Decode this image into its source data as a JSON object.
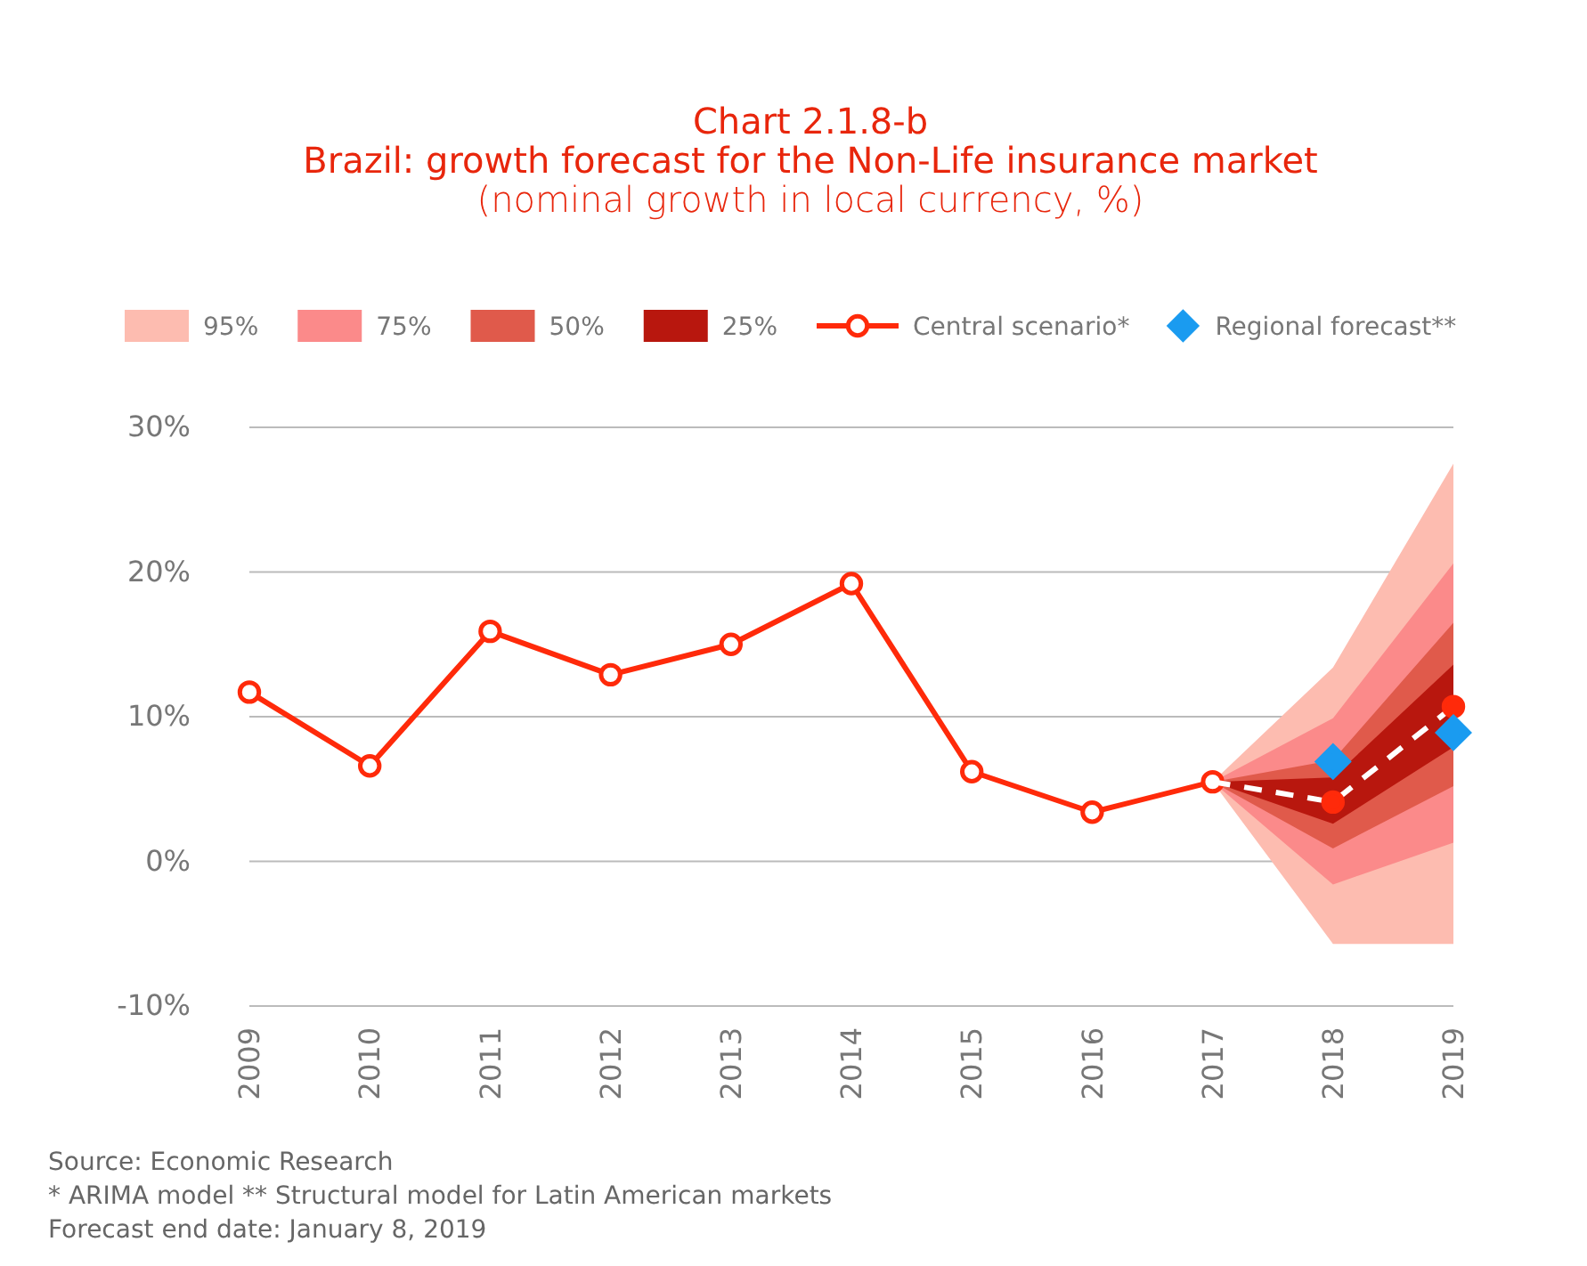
{
  "chart_data": {
    "type": "line",
    "title": "Chart 2.1.8-b\nBrazil: growth forecast for the Non-Life insurance market",
    "subtitle": "(nominal growth in local currency, %)",
    "categories": [
      "2009",
      "2010",
      "2011",
      "2012",
      "2013",
      "2014",
      "2015",
      "2016",
      "2017",
      "2018",
      "2019"
    ],
    "ylim": [
      -10,
      30
    ],
    "yticks": [
      {
        "value": -10,
        "label": "-10%"
      },
      {
        "value": 0,
        "label": "0%"
      },
      {
        "value": 10,
        "label": "10%"
      },
      {
        "value": 20,
        "label": "20%"
      },
      {
        "value": 30,
        "label": "30%"
      }
    ],
    "grid": "y",
    "legend": "top",
    "series": [
      {
        "name": "95%",
        "type": "area",
        "color": "#fdbcb0",
        "values": [
          null,
          null,
          null,
          null,
          null,
          null,
          null,
          null,
          null,
          null,
          null
        ],
        "lower": [
          null,
          null,
          null,
          null,
          null,
          null,
          null,
          null,
          5.5,
          -5.7,
          -5.7
        ],
        "upper": [
          null,
          null,
          null,
          null,
          null,
          null,
          null,
          null,
          5.5,
          13.4,
          27.5
        ]
      },
      {
        "name": "75%",
        "type": "area",
        "color": "#fb8a8a",
        "values": [
          null,
          null,
          null,
          null,
          null,
          null,
          null,
          null,
          null,
          null,
          null
        ],
        "lower": [
          null,
          null,
          null,
          null,
          null,
          null,
          null,
          null,
          5.5,
          -1.6,
          1.3
        ],
        "upper": [
          null,
          null,
          null,
          null,
          null,
          null,
          null,
          null,
          5.5,
          9.9,
          20.6
        ]
      },
      {
        "name": "50%",
        "type": "area",
        "color": "#e05a4b",
        "values": [
          null,
          null,
          null,
          null,
          null,
          null,
          null,
          null,
          null,
          null,
          null
        ],
        "lower": [
          null,
          null,
          null,
          null,
          null,
          null,
          null,
          null,
          5.5,
          0.9,
          5.2
        ],
        "upper": [
          null,
          null,
          null,
          null,
          null,
          null,
          null,
          null,
          5.5,
          7.0,
          16.5
        ]
      },
      {
        "name": "25%",
        "type": "area",
        "color": "#b8170e",
        "values": [
          null,
          null,
          null,
          null,
          null,
          null,
          null,
          null,
          null,
          null,
          null
        ],
        "lower": [
          null,
          null,
          null,
          null,
          null,
          null,
          null,
          null,
          5.5,
          2.6,
          7.9
        ],
        "upper": [
          null,
          null,
          null,
          null,
          null,
          null,
          null,
          null,
          5.5,
          5.8,
          13.6
        ]
      },
      {
        "name": "Central scenario*",
        "color": "#ff2a0a",
        "marker": "circle",
        "line_style": "solid",
        "values": [
          11.7,
          6.6,
          15.9,
          12.9,
          15.0,
          19.2,
          6.2,
          3.4,
          5.5,
          null,
          null
        ]
      },
      {
        "color": "#ffffff",
        "marker": "none",
        "line_style": "dashed",
        "values": [
          null,
          null,
          null,
          null,
          null,
          null,
          null,
          null,
          5.5,
          4.1,
          10.7
        ]
      },
      {
        "type": "scatter",
        "color": "#ff2a0a",
        "marker": "circle",
        "values": [
          null,
          null,
          null,
          null,
          null,
          null,
          null,
          null,
          null,
          4.1,
          10.7
        ]
      },
      {
        "name": "Regional forecast**",
        "type": "scatter",
        "color": "#1a9bf0",
        "marker": "diamond",
        "values": [
          null,
          null,
          null,
          null,
          null,
          null,
          null,
          null,
          null,
          6.9,
          8.9
        ]
      }
    ],
    "annotations": [
      "Source: Economic Research",
      "* ARIMA model ** Structural model for Latin American markets",
      "Forecast end date: January 8, 2019"
    ]
  }
}
